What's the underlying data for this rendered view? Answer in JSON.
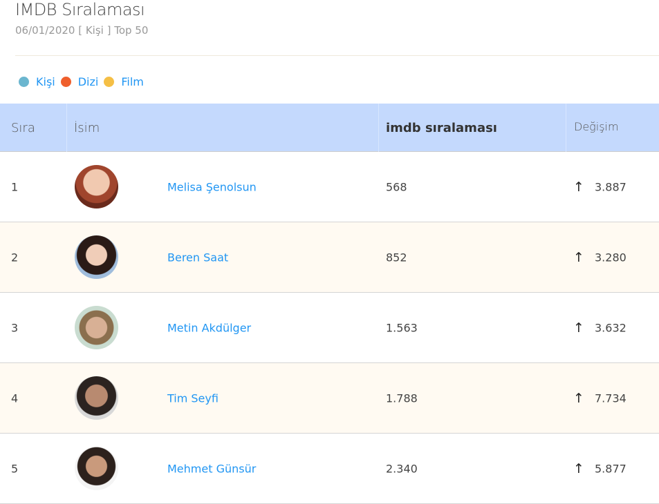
{
  "header": {
    "title": "IMDB Sıralaması",
    "subtitle": "06/01/2020 [ Kişi ] Top 50"
  },
  "legend": [
    {
      "label": "Kişi",
      "color": "#6bb6cf"
    },
    {
      "label": "Dizi",
      "color": "#ef5f2c"
    },
    {
      "label": "Film",
      "color": "#f5bf45"
    }
  ],
  "table": {
    "headers": {
      "rank": "Sıra",
      "name": "İsim",
      "imdb": "imdb sıralaması",
      "change": "Değişim"
    },
    "rows": [
      {
        "rank": "1",
        "name": "Melisa Şenolsun",
        "imdb": "568",
        "change": "3.887",
        "direction": "up"
      },
      {
        "rank": "2",
        "name": "Beren Saat",
        "imdb": "852",
        "change": "3.280",
        "direction": "up"
      },
      {
        "rank": "3",
        "name": "Metin Akdülger",
        "imdb": "1.563",
        "change": "3.632",
        "direction": "up"
      },
      {
        "rank": "4",
        "name": "Tim Seyfi",
        "imdb": "1.788",
        "change": "7.734",
        "direction": "up"
      },
      {
        "rank": "5",
        "name": "Mehmet Günsür",
        "imdb": "2.340",
        "change": "5.877",
        "direction": "up"
      }
    ]
  }
}
